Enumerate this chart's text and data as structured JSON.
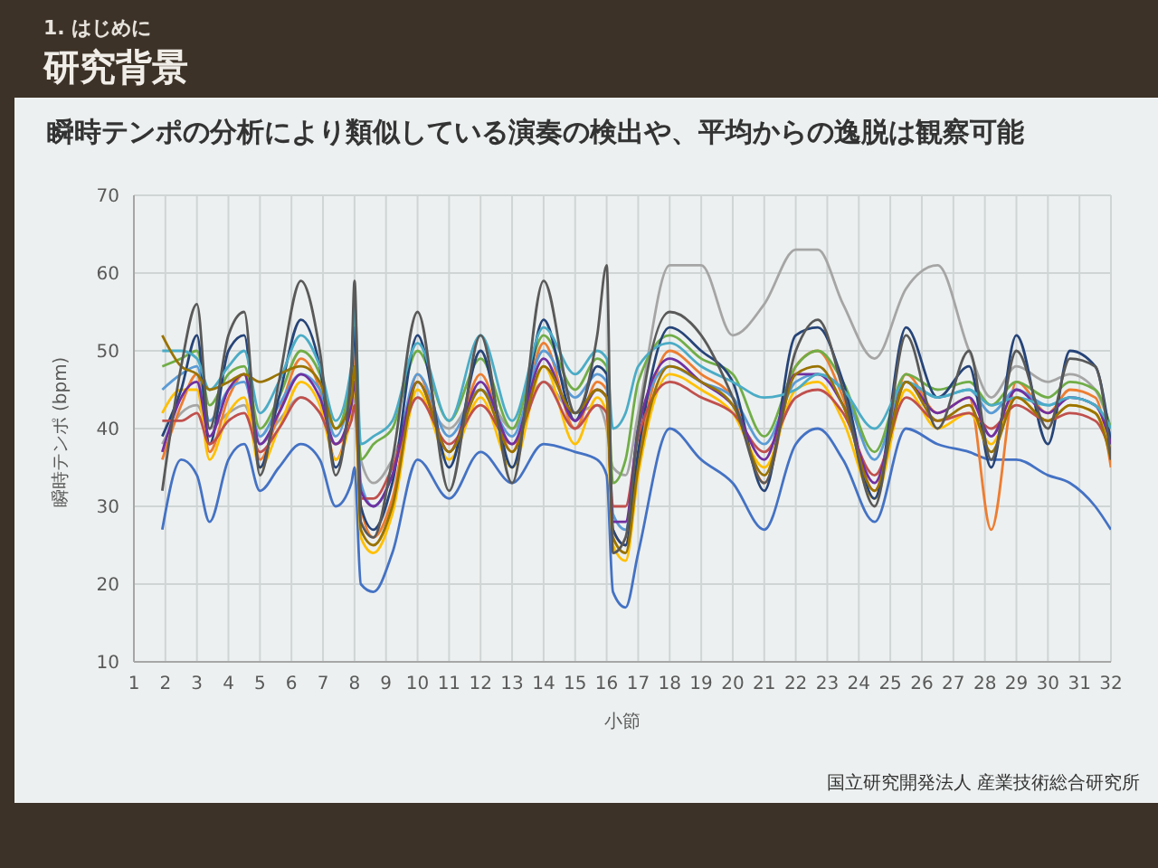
{
  "chart_data": {
    "type": "line",
    "title": "研究背景",
    "subtitle": "瞬時テンポの分析により類似している演奏の検出や、平均からの逸脱は観察可能",
    "annotations": [
      "1. はじめに",
      "国立研究開発法人 産業技術総合研究所"
    ],
    "xlabel": "小節",
    "ylabel": "瞬時テンポ (bpm)",
    "x": [
      1.9,
      2.5,
      3.0,
      3.4,
      4.0,
      4.5,
      5.0,
      5.6,
      6.3,
      6.9,
      7.4,
      7.9,
      8.0,
      8.2,
      8.6,
      9.2,
      10.0,
      11.0,
      12.0,
      13.0,
      14.0,
      15.0,
      15.7,
      16.0,
      16.2,
      16.6,
      17.0,
      18.0,
      19.0,
      20.0,
      21.0,
      22.0,
      22.7,
      23.5,
      24.5,
      25.5,
      26.5,
      27.5,
      28.2,
      29.0,
      30.0,
      30.7,
      31.5,
      32.0
    ],
    "series": [
      {
        "color": "#a5a5a5",
        "values": [
          38,
          42,
          43,
          40,
          42,
          43,
          38,
          41,
          44,
          42,
          38,
          42,
          44,
          36,
          33,
          36,
          44,
          40,
          45,
          40,
          46,
          42,
          43,
          40,
          35,
          34,
          42,
          61,
          61,
          52,
          56,
          63,
          63,
          56,
          49,
          58,
          61,
          50,
          44,
          48,
          46,
          47,
          45,
          40
        ]
      },
      {
        "color": "#4472c4",
        "values": [
          27,
          36,
          34,
          28,
          36,
          38,
          32,
          35,
          38,
          36,
          30,
          33,
          35,
          20,
          19,
          24,
          36,
          31,
          37,
          33,
          38,
          37,
          36,
          34,
          19,
          17,
          24,
          40,
          36,
          33,
          27,
          38,
          40,
          36,
          28,
          40,
          38,
          37,
          36,
          36,
          34,
          33,
          30,
          27
        ]
      },
      {
        "color": "#ed7d31",
        "values": [
          36,
          43,
          47,
          37,
          44,
          47,
          36,
          42,
          49,
          45,
          36,
          45,
          50,
          30,
          26,
          31,
          47,
          37,
          47,
          37,
          51,
          40,
          46,
          45,
          27,
          25,
          36,
          50,
          47,
          44,
          33,
          48,
          50,
          44,
          32,
          47,
          42,
          44,
          27,
          46,
          42,
          45,
          44,
          35
        ]
      },
      {
        "color": "#ffc000",
        "values": [
          42,
          45,
          45,
          36,
          42,
          44,
          35,
          40,
          46,
          43,
          36,
          42,
          46,
          26,
          24,
          29,
          45,
          36,
          44,
          35,
          48,
          38,
          44,
          42,
          25,
          23,
          34,
          47,
          45,
          42,
          35,
          45,
          46,
          41,
          31,
          45,
          40,
          42,
          38,
          44,
          41,
          43,
          42,
          37
        ]
      },
      {
        "color": "#5b9bd5",
        "values": [
          45,
          47,
          48,
          41,
          45,
          46,
          39,
          43,
          47,
          45,
          39,
          46,
          52,
          33,
          30,
          34,
          47,
          39,
          45,
          39,
          50,
          44,
          47,
          46,
          29,
          27,
          40,
          48,
          46,
          44,
          38,
          46,
          47,
          45,
          36,
          46,
          44,
          45,
          42,
          45,
          43,
          44,
          43,
          39
        ]
      },
      {
        "color": "#70ad47",
        "values": [
          48,
          49,
          50,
          43,
          47,
          48,
          40,
          44,
          50,
          47,
          40,
          47,
          54,
          36,
          38,
          40,
          50,
          41,
          49,
          40,
          52,
          45,
          49,
          48,
          33,
          36,
          46,
          52,
          49,
          47,
          39,
          48,
          50,
          46,
          37,
          47,
          45,
          46,
          43,
          46,
          44,
          46,
          45,
          40
        ]
      },
      {
        "color": "#264478",
        "values": [
          39,
          45,
          52,
          38,
          50,
          52,
          35,
          44,
          54,
          48,
          35,
          46,
          53,
          30,
          27,
          33,
          52,
          35,
          50,
          35,
          54,
          41,
          48,
          47,
          27,
          25,
          37,
          53,
          50,
          46,
          32,
          52,
          53,
          46,
          31,
          53,
          44,
          48,
          35,
          52,
          38,
          50,
          48,
          38
        ]
      },
      {
        "color": "#c0504d",
        "values": [
          41,
          41,
          42,
          38,
          41,
          42,
          37,
          40,
          44,
          42,
          38,
          41,
          43,
          31,
          31,
          35,
          44,
          38,
          43,
          38,
          46,
          40,
          43,
          42,
          30,
          30,
          39,
          46,
          44,
          42,
          37,
          44,
          45,
          42,
          34,
          44,
          41,
          42,
          40,
          43,
          41,
          42,
          41,
          37
        ]
      },
      {
        "color": "#7030a0",
        "values": [
          37,
          44,
          46,
          39,
          45,
          47,
          38,
          42,
          47,
          44,
          38,
          43,
          46,
          32,
          30,
          34,
          46,
          37,
          46,
          38,
          49,
          41,
          45,
          44,
          28,
          28,
          40,
          49,
          46,
          43,
          36,
          47,
          47,
          43,
          33,
          46,
          42,
          44,
          39,
          45,
          42,
          44,
          43,
          38
        ]
      },
      {
        "color": "#4bacc6",
        "values": [
          50,
          50,
          49,
          45,
          48,
          50,
          42,
          46,
          52,
          48,
          41,
          48,
          56,
          38,
          39,
          41,
          51,
          41,
          52,
          41,
          53,
          47,
          50,
          49,
          40,
          42,
          48,
          51,
          48,
          46,
          44,
          45,
          47,
          45,
          40,
          46,
          44,
          45,
          43,
          44,
          43,
          44,
          43,
          40
        ]
      },
      {
        "color": "#997300",
        "values": [
          52,
          48,
          47,
          45,
          46,
          47,
          46,
          47,
          48,
          46,
          40,
          44,
          48,
          27,
          25,
          30,
          46,
          37,
          45,
          37,
          48,
          42,
          45,
          44,
          26,
          24,
          35,
          48,
          46,
          43,
          34,
          47,
          48,
          43,
          32,
          46,
          41,
          43,
          37,
          44,
          41,
          43,
          42,
          36
        ]
      },
      {
        "color": "#595959",
        "values": [
          32,
          48,
          56,
          40,
          52,
          55,
          34,
          46,
          59,
          50,
          34,
          48,
          59,
          28,
          26,
          36,
          55,
          32,
          52,
          33,
          59,
          42,
          52,
          61,
          24,
          26,
          40,
          55,
          52,
          44,
          33,
          50,
          54,
          45,
          30,
          52,
          40,
          50,
          36,
          50,
          40,
          49,
          48,
          36
        ]
      }
    ],
    "xlim": [
      1,
      32
    ],
    "xticks": [
      1,
      2,
      3,
      4,
      5,
      6,
      7,
      8,
      9,
      10,
      11,
      12,
      13,
      14,
      15,
      16,
      17,
      18,
      19,
      20,
      21,
      22,
      23,
      24,
      25,
      26,
      27,
      28,
      29,
      30,
      31,
      32
    ],
    "ylim": [
      10,
      70
    ],
    "yticks": [
      10,
      20,
      30,
      40,
      50,
      60,
      70
    ],
    "grid": true
  }
}
